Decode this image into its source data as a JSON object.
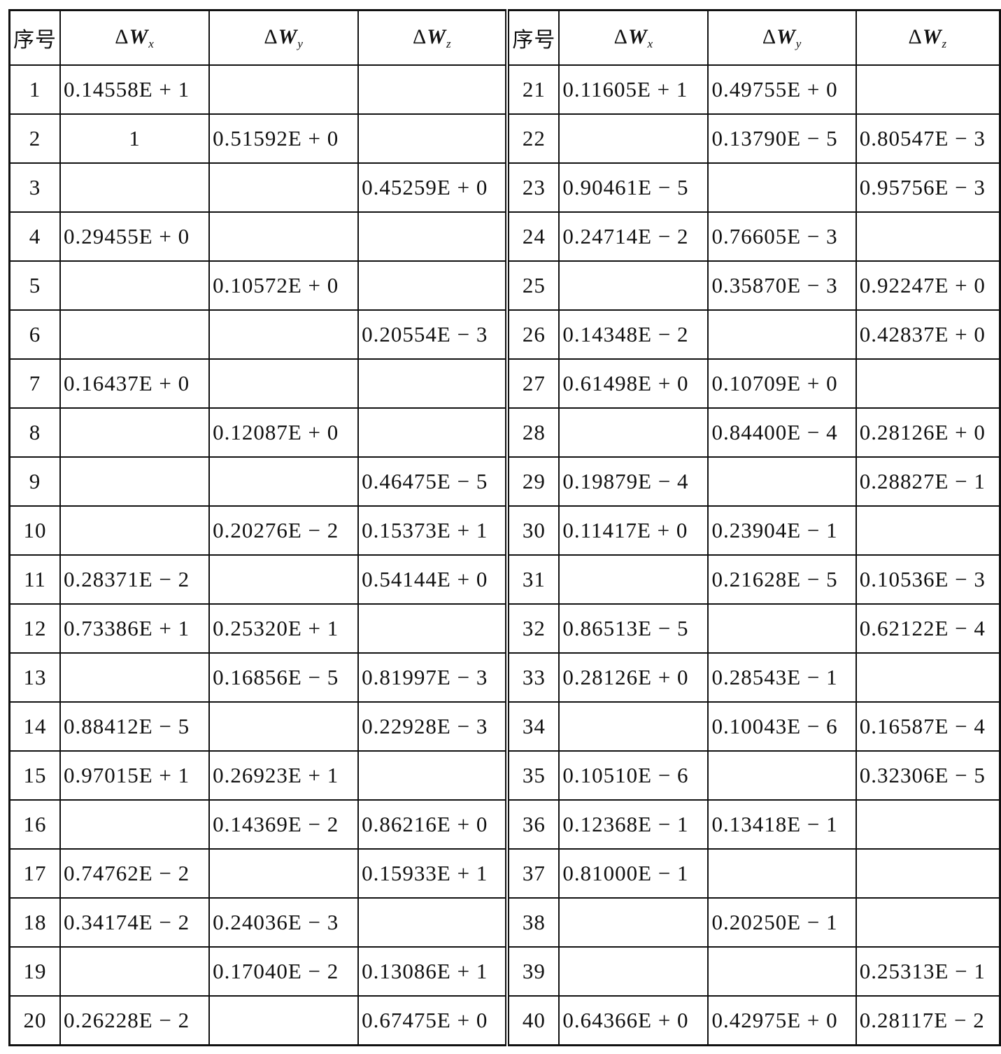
{
  "header": {
    "index_label": "序号",
    "columns": [
      {
        "delta": "Δ",
        "symbol": "W",
        "sub": "x"
      },
      {
        "delta": "Δ",
        "symbol": "W",
        "sub": "y"
      },
      {
        "delta": "Δ",
        "symbol": "W",
        "sub": "z"
      }
    ]
  },
  "rows": [
    [
      "1",
      "0.14558E + 1",
      "",
      ""
    ],
    [
      "2",
      "1",
      "0.51592E + 0",
      ""
    ],
    [
      "3",
      "",
      "",
      "0.45259E + 0"
    ],
    [
      "4",
      "0.29455E + 0",
      "",
      ""
    ],
    [
      "5",
      "",
      "0.10572E + 0",
      ""
    ],
    [
      "6",
      "",
      "",
      "0.20554E − 3"
    ],
    [
      "7",
      "0.16437E + 0",
      "",
      ""
    ],
    [
      "8",
      "",
      "0.12087E + 0",
      ""
    ],
    [
      "9",
      "",
      "",
      "0.46475E − 5"
    ],
    [
      "10",
      "",
      "0.20276E − 2",
      "0.15373E + 1"
    ],
    [
      "11",
      "0.28371E − 2",
      "",
      "0.54144E + 0"
    ],
    [
      "12",
      "0.73386E + 1",
      "0.25320E + 1",
      ""
    ],
    [
      "13",
      "",
      "0.16856E − 5",
      "0.81997E − 3"
    ],
    [
      "14",
      "0.88412E − 5",
      "",
      "0.22928E − 3"
    ],
    [
      "15",
      "0.97015E + 1",
      "0.26923E + 1",
      ""
    ],
    [
      "16",
      "",
      "0.14369E − 2",
      "0.86216E + 0"
    ],
    [
      "17",
      "0.74762E − 2",
      "",
      "0.15933E + 1"
    ],
    [
      "18",
      "0.34174E − 2",
      "0.24036E − 3",
      ""
    ],
    [
      "19",
      "",
      "0.17040E − 2",
      "0.13086E + 1"
    ],
    [
      "20",
      "0.26228E − 2",
      "",
      "0.67475E + 0"
    ],
    [
      "21",
      "0.11605E + 1",
      "0.49755E + 0",
      ""
    ],
    [
      "22",
      "",
      "0.13790E − 5",
      "0.80547E − 3"
    ],
    [
      "23",
      "0.90461E − 5",
      "",
      "0.95756E − 3"
    ],
    [
      "24",
      "0.24714E − 2",
      "0.76605E − 3",
      ""
    ],
    [
      "25",
      "",
      "0.35870E − 3",
      "0.92247E + 0"
    ],
    [
      "26",
      "0.14348E − 2",
      "",
      "0.42837E + 0"
    ],
    [
      "27",
      "0.61498E + 0",
      "0.10709E + 0",
      ""
    ],
    [
      "28",
      "",
      "0.84400E − 4",
      "0.28126E + 0"
    ],
    [
      "29",
      "0.19879E − 4",
      "",
      "0.28827E − 1"
    ],
    [
      "30",
      "0.11417E + 0",
      "0.23904E − 1",
      ""
    ],
    [
      "31",
      "",
      "0.21628E − 5",
      "0.10536E − 3"
    ],
    [
      "32",
      "0.86513E − 5",
      "",
      "0.62122E − 4"
    ],
    [
      "33",
      "0.28126E + 0",
      "0.28543E − 1",
      ""
    ],
    [
      "34",
      "",
      "0.10043E − 6",
      "0.16587E − 4"
    ],
    [
      "35",
      "0.10510E − 6",
      "",
      "0.32306E − 5"
    ],
    [
      "36",
      "0.12368E − 1",
      "0.13418E − 1",
      ""
    ],
    [
      "37",
      "0.81000E − 1",
      "",
      ""
    ],
    [
      "38",
      "",
      "0.20250E − 1",
      ""
    ],
    [
      "39",
      "",
      "",
      "0.25313E − 1"
    ],
    [
      "40",
      "0.64366E + 0",
      "0.42975E + 0",
      "0.28117E − 2"
    ]
  ]
}
